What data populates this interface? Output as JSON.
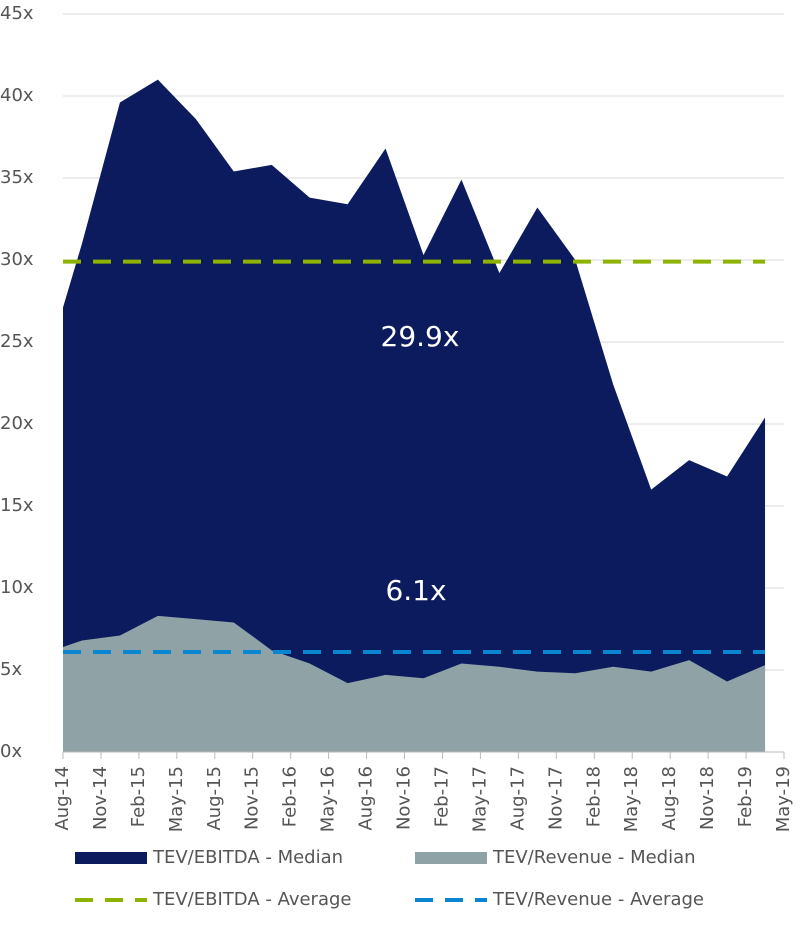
{
  "chart_data": {
    "type": "area",
    "categories": [
      "Aug-14",
      "Nov-14",
      "Feb-15",
      "May-15",
      "Aug-15",
      "Nov-15",
      "Feb-16",
      "May-16",
      "Aug-16",
      "Nov-16",
      "Feb-17",
      "May-17",
      "Aug-17",
      "Nov-17",
      "Feb-18",
      "May-18",
      "Aug-18",
      "Nov-18",
      "Feb-19",
      "May-19"
    ],
    "ylim": [
      0,
      45
    ],
    "yticks": [
      {
        "value": 0,
        "label": "0x"
      },
      {
        "value": 5,
        "label": "5x"
      },
      {
        "value": 10,
        "label": "10x"
      },
      {
        "value": 15,
        "label": "15x"
      },
      {
        "value": 20,
        "label": "20x"
      },
      {
        "value": 25,
        "label": "25x"
      },
      {
        "value": 30,
        "label": "30x"
      },
      {
        "value": 35,
        "label": "35x"
      },
      {
        "value": 40,
        "label": "40x"
      },
      {
        "value": 45,
        "label": "45x"
      }
    ],
    "grid": true,
    "series": [
      {
        "name": "TEV/EBITDA - Median",
        "color": "#0b1b5e",
        "values": [
          27.1,
          31,
          39.6,
          41,
          38.6,
          35.4,
          35.8,
          33.8,
          33.4,
          36.8,
          30.3,
          34.9,
          29.2,
          33.2,
          30.0,
          22.4,
          16.0,
          17.8,
          16.8,
          20.4
        ]
      },
      {
        "name": "TEV/Revenue - Median",
        "color": "#8fa3a6",
        "values": [
          6.4,
          6.8,
          7.1,
          8.3,
          8.1,
          7.9,
          6.2,
          5.4,
          4.2,
          4.7,
          4.5,
          5.4,
          5.2,
          4.9,
          4.8,
          5.2,
          4.9,
          5.6,
          4.3,
          5.3
        ]
      }
    ],
    "averages": [
      {
        "name": "TEV/EBITDA - Average",
        "color": "#8db300",
        "value": 29.9,
        "value_label": "29.9x"
      },
      {
        "name": "TEV/Revenue - Average",
        "color": "#0a86d0",
        "value": 6.1,
        "value_label": "6.1x"
      }
    ]
  }
}
